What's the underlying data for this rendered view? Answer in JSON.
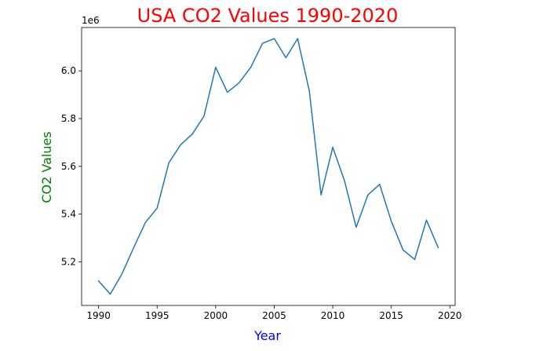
{
  "chart_data": {
    "type": "line",
    "title": "USA CO2 Values 1990-2020",
    "xlabel": "Year",
    "ylabel": "CO2 Values",
    "y_offset_label": "1e6",
    "grid": false,
    "title_color": "#ff0000",
    "xlabel_color": "#0000ff",
    "ylabel_color": "#008000",
    "series_color": "#1f77b4",
    "xlim": [
      1988.55,
      2020.45
    ],
    "ylim": [
      5.0175,
      6.1815
    ],
    "x_ticks": [
      1990,
      1995,
      2000,
      2005,
      2010,
      2015,
      2020
    ],
    "x_tick_labels": [
      "1990",
      "1995",
      "2000",
      "2005",
      "2010",
      "2015",
      "2020"
    ],
    "y_ticks": [
      5.2,
      5.4,
      5.6,
      5.8,
      6.0
    ],
    "y_tick_labels": [
      "5.2",
      "5.4",
      "5.6",
      "5.8",
      "6.0"
    ],
    "series": [
      {
        "x": [
          1990,
          1991,
          1992,
          1993,
          1994,
          1995,
          1996,
          1997,
          1998,
          1999,
          2000,
          2001,
          2002,
          2003,
          2004,
          2005,
          2006,
          2007,
          2008,
          2009,
          2010,
          2011,
          2012,
          2013,
          2014,
          2015,
          2016,
          2017,
          2018,
          2019
        ],
        "values": [
          5.12,
          5.065,
          5.15,
          5.26,
          5.365,
          5.425,
          5.615,
          5.69,
          5.735,
          5.81,
          6.015,
          5.91,
          5.95,
          6.015,
          6.115,
          6.135,
          6.055,
          6.135,
          5.915,
          5.48,
          5.68,
          5.54,
          5.345,
          5.48,
          5.525,
          5.37,
          5.25,
          5.21,
          5.375,
          5.26
        ]
      }
    ]
  }
}
